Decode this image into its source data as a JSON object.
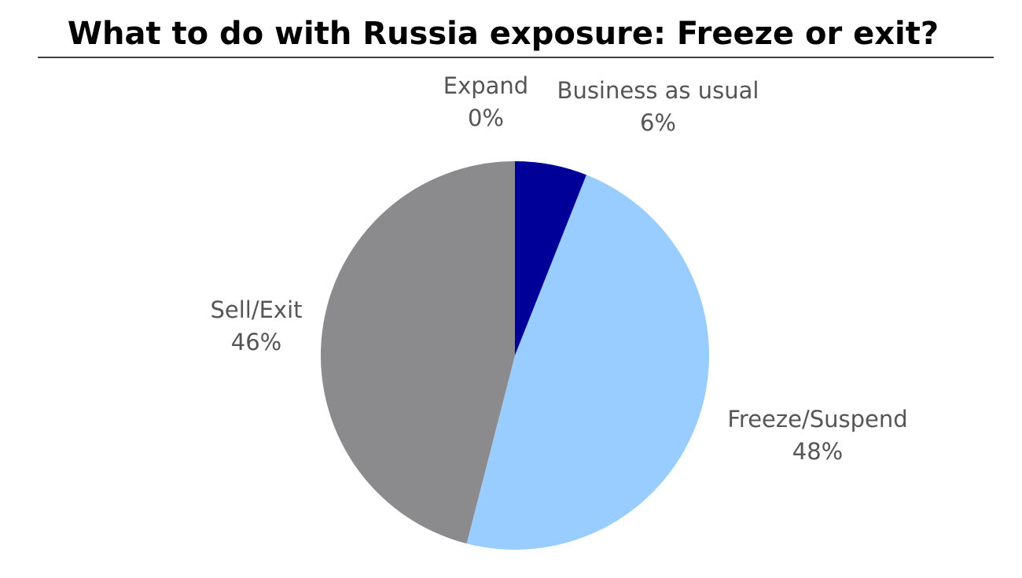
{
  "chart_data": {
    "type": "pie",
    "title": "What to do with Russia exposure: Freeze or exit?",
    "categories": [
      "Expand",
      "Business as usual",
      "Freeze/Suspend",
      "Sell/Exit"
    ],
    "values": [
      0,
      6,
      48,
      46
    ],
    "value_labels": [
      "0%",
      "6%",
      "48%",
      "46%"
    ],
    "colors": [
      "#2a5fb8",
      "#000099",
      "#99ccff",
      "#8b8b8d"
    ]
  }
}
